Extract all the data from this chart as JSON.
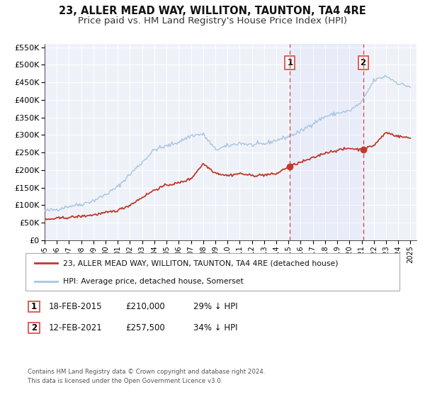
{
  "title": "23, ALLER MEAD WAY, WILLITON, TAUNTON, TA4 4RE",
  "subtitle": "Price paid vs. HM Land Registry's House Price Index (HPI)",
  "ylim": [
    0,
    560000
  ],
  "xlim_start": 1995.0,
  "xlim_end": 2025.5,
  "yticks": [
    0,
    50000,
    100000,
    150000,
    200000,
    250000,
    300000,
    350000,
    400000,
    450000,
    500000,
    550000
  ],
  "ytick_labels": [
    "£0",
    "£50K",
    "£100K",
    "£150K",
    "£200K",
    "£250K",
    "£300K",
    "£350K",
    "£400K",
    "£450K",
    "£500K",
    "£550K"
  ],
  "xtick_years": [
    1995,
    1996,
    1997,
    1998,
    1999,
    2000,
    2001,
    2002,
    2003,
    2004,
    2005,
    2006,
    2007,
    2008,
    2009,
    2010,
    2011,
    2012,
    2013,
    2014,
    2015,
    2016,
    2017,
    2018,
    2019,
    2020,
    2021,
    2022,
    2023,
    2024,
    2025
  ],
  "hpi_color": "#a8c4e0",
  "price_color": "#c0392b",
  "vline_color": "#e05050",
  "bg_color": "#eef2f8",
  "grid_color": "#ffffff",
  "sale1_x": 2015.12,
  "sale1_y": 210000,
  "sale2_x": 2021.12,
  "sale2_y": 257500,
  "legend_line1": "23, ALLER MEAD WAY, WILLITON, TAUNTON, TA4 4RE (detached house)",
  "legend_line2": "HPI: Average price, detached house, Somerset",
  "footnote1": "Contains HM Land Registry data © Crown copyright and database right 2024.",
  "footnote2": "This data is licensed under the Open Government Licence v3.0.",
  "title_fontsize": 10.5,
  "subtitle_fontsize": 9.5,
  "hpi_anchors_x": [
    1995,
    1996,
    1997,
    1998,
    1999,
    2000,
    2001,
    2002,
    2003,
    2004,
    2005,
    2006,
    2007,
    2008,
    2009,
    2010,
    2011,
    2012,
    2013,
    2014,
    2015,
    2016,
    2017,
    2018,
    2019,
    2020,
    2021,
    2022,
    2023,
    2024,
    2025
  ],
  "hpi_anchors_y": [
    83000,
    88000,
    97000,
    102000,
    113000,
    130000,
    152000,
    188000,
    222000,
    258000,
    268000,
    280000,
    298000,
    302000,
    258000,
    268000,
    277000,
    271000,
    274000,
    285000,
    295000,
    310000,
    333000,
    352000,
    362000,
    368000,
    393000,
    455000,
    468000,
    447000,
    437000
  ],
  "price_anchors_x": [
    1995,
    1996,
    1997,
    1998,
    1999,
    2000,
    2001,
    2002,
    2003,
    2004,
    2005,
    2006,
    2007,
    2008,
    2009,
    2010,
    2011,
    2012,
    2013,
    2014,
    2015,
    2016,
    2017,
    2018,
    2019,
    2020,
    2021,
    2022,
    2023,
    2024,
    2025
  ],
  "price_anchors_y": [
    58000,
    62000,
    65000,
    68000,
    72000,
    78000,
    85000,
    100000,
    122000,
    143000,
    157000,
    163000,
    175000,
    218000,
    192000,
    184000,
    190000,
    184000,
    186000,
    189000,
    210000,
    222000,
    234000,
    249000,
    256000,
    262000,
    257500,
    270000,
    307000,
    296000,
    291000
  ]
}
